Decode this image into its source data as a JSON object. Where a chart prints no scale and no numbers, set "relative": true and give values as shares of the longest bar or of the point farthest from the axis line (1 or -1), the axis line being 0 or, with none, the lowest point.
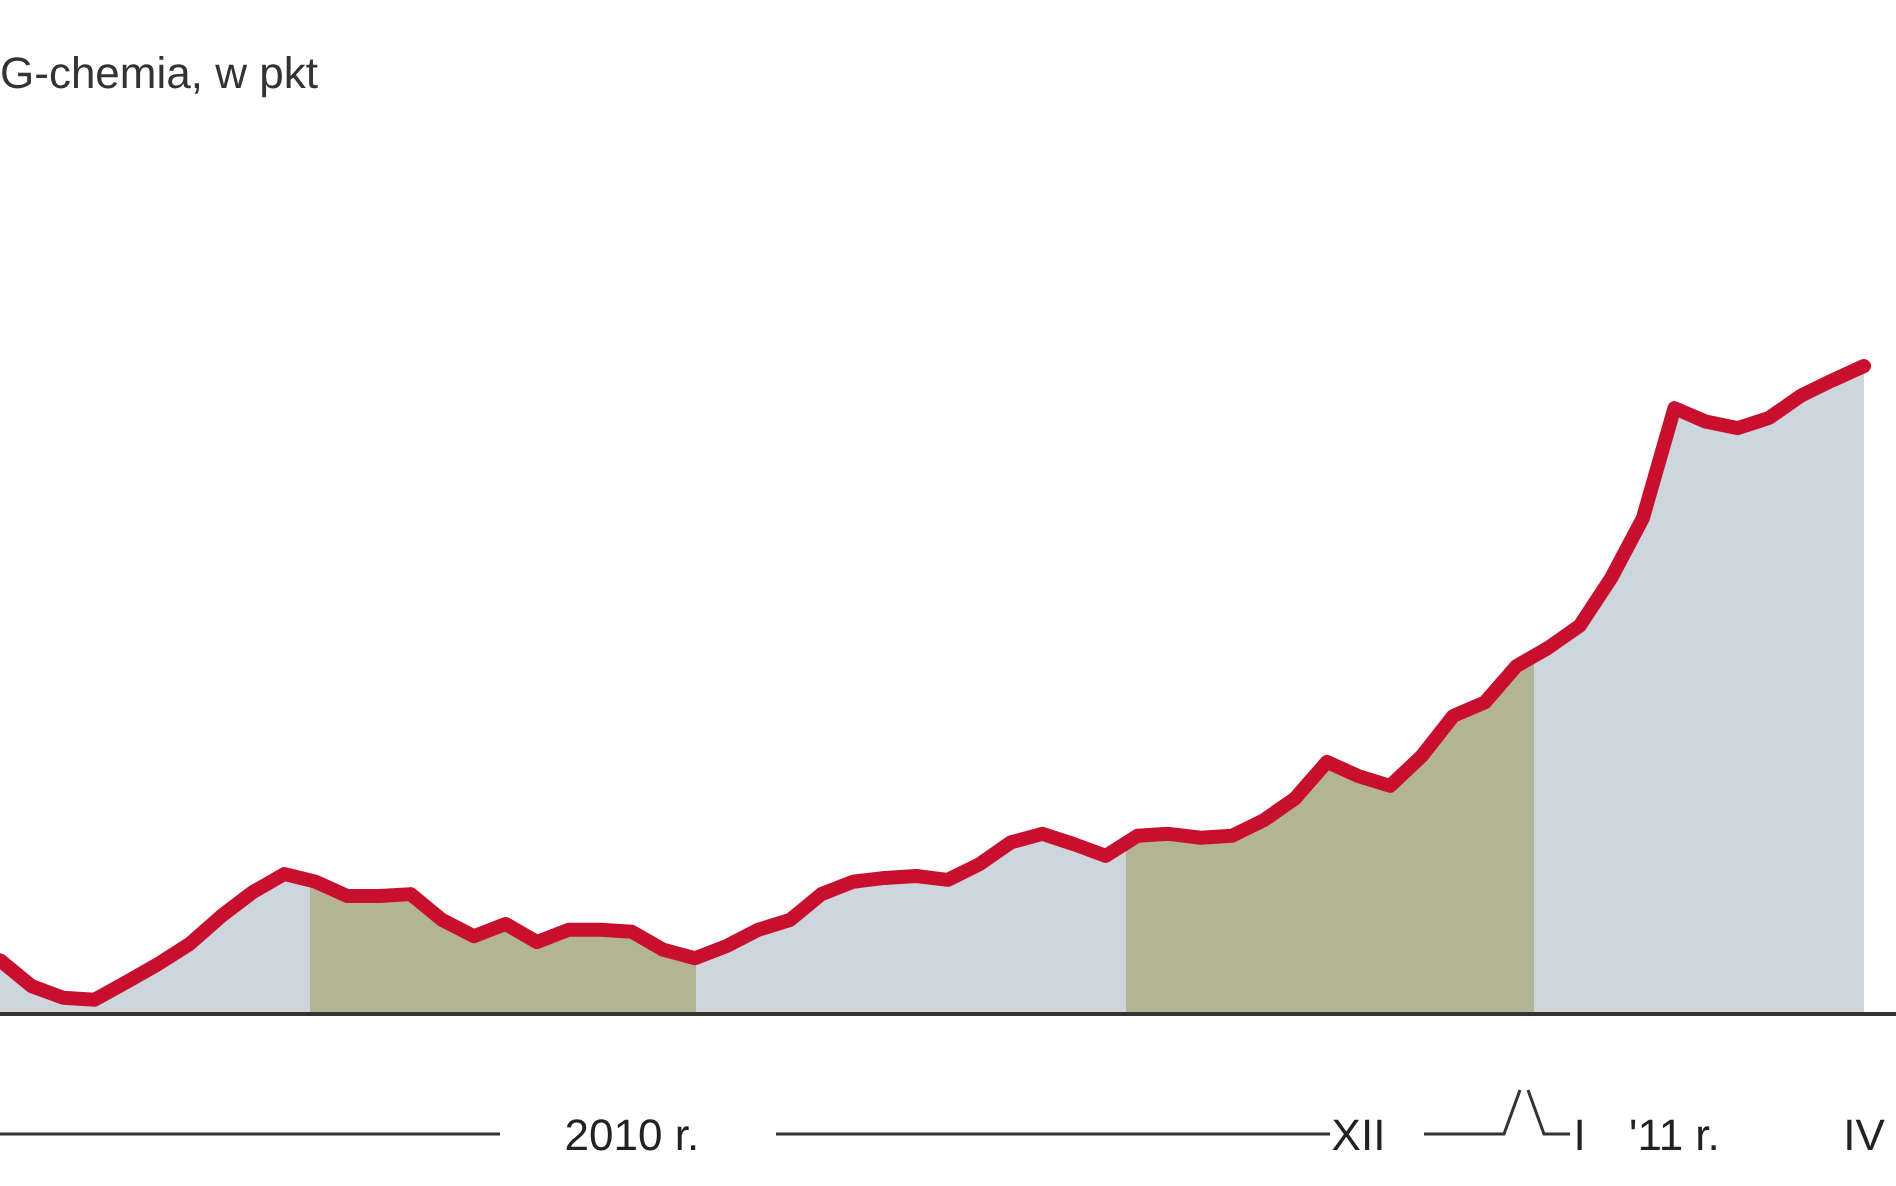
{
  "chart_data": {
    "type": "area",
    "title": "G-chemia, w pkt",
    "relative": true,
    "categories": [
      null,
      null,
      null,
      null,
      null,
      null,
      null,
      null,
      null,
      null,
      null,
      null,
      null,
      null,
      null,
      null,
      null,
      null,
      null,
      null,
      "2010 r.",
      null,
      null,
      null,
      null,
      null,
      null,
      null,
      null,
      null,
      null,
      null,
      null,
      null,
      null,
      null,
      null,
      null,
      null,
      null,
      null,
      null,
      null,
      "XII",
      null,
      null,
      null,
      null,
      null,
      null,
      "I",
      null,
      null,
      "'11 r.",
      null,
      null,
      null,
      null,
      null,
      "IV"
    ],
    "series": [
      {
        "color": "#c8102e",
        "values": [
          0.083,
          0.043,
          0.025,
          0.022,
          0.049,
          0.077,
          0.108,
          0.151,
          0.188,
          0.216,
          0.204,
          0.182,
          0.182,
          0.185,
          0.145,
          0.12,
          0.139,
          0.111,
          0.13,
          0.13,
          0.127,
          0.099,
          0.086,
          0.105,
          0.13,
          0.145,
          0.185,
          0.204,
          0.21,
          0.213,
          0.207,
          0.231,
          0.265,
          0.278,
          0.262,
          0.244,
          0.275,
          0.278,
          0.272,
          0.275,
          0.299,
          0.333,
          0.389,
          0.367,
          0.352,
          0.398,
          0.46,
          0.481,
          0.537,
          0.565,
          0.599,
          0.673,
          0.765,
          0.935,
          0.914,
          0.904,
          0.92,
          0.954,
          0.978,
          1.0
        ]
      }
    ],
    "legend": false,
    "line_style": "solid",
    "marker": "none"
  }
}
